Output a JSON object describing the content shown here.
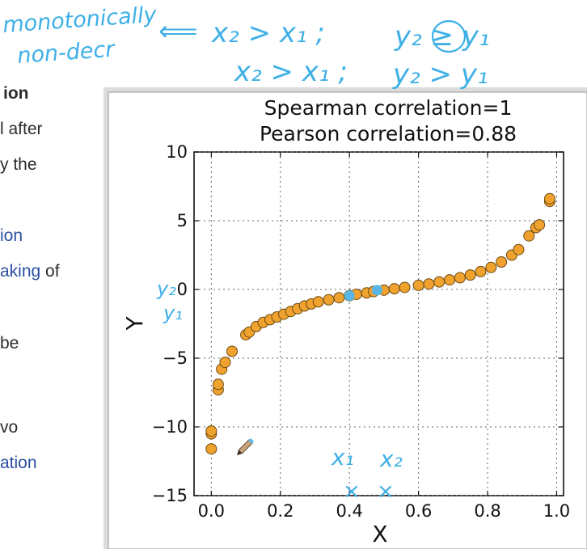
{
  "document": {
    "lines": [
      {
        "text": "ion",
        "style": "bold"
      },
      {
        "text": "l after",
        "style": "plain"
      },
      {
        "text": "y the",
        "style": "plain"
      },
      {
        "text": "ion",
        "style": "link"
      },
      {
        "text": "aking",
        "style": "link",
        "suffix": " of"
      },
      {
        "text": "be",
        "style": "plain"
      },
      {
        "text": "vo",
        "style": "plain"
      },
      {
        "text": "ation",
        "style": "link"
      }
    ]
  },
  "annotations": {
    "line1_left": "monotonically",
    "line2_left": "non-decr",
    "arrow": "⟸",
    "eq1": "x₂ > x₁ ;",
    "eq2": "y₂ ≥ y₁",
    "eq3": "x₂ > x₁ ;",
    "eq4": "y₂ > y₁",
    "y2": "y₂",
    "y1": "y₁",
    "x1": "x₁",
    "x2": "x₂",
    "marker_x": "×",
    "ink_color": "#3fb0e6"
  },
  "chart_data": {
    "type": "scatter",
    "title": "Spearman correlation=1",
    "subtitle": "Pearson correlation=0.88",
    "xlabel": "X",
    "ylabel": "Y",
    "xlim": [
      -0.05,
      1.02
    ],
    "ylim": [
      -15,
      10
    ],
    "xticks": [
      0.0,
      0.2,
      0.4,
      0.6,
      0.8,
      1.0
    ],
    "xtick_labels": [
      "0.0",
      "0.2",
      "0.4",
      "0.6",
      "0.8",
      "1.0"
    ],
    "yticks": [
      -15,
      -10,
      -5,
      0,
      5,
      10
    ],
    "ytick_labels": [
      "−15",
      "−10",
      "−5",
      "0",
      "5",
      "10"
    ],
    "grid": true,
    "point_color": "#f0a22e",
    "point_edge": "#6b4a12",
    "highlight_color": "#58b7e4",
    "points": [
      {
        "x": 0.0,
        "y": -11.6
      },
      {
        "x": 0.0,
        "y": -10.5
      },
      {
        "x": 0.0,
        "y": -10.3
      },
      {
        "x": 0.02,
        "y": -7.3
      },
      {
        "x": 0.02,
        "y": -6.9
      },
      {
        "x": 0.03,
        "y": -5.8
      },
      {
        "x": 0.04,
        "y": -5.3
      },
      {
        "x": 0.06,
        "y": -4.5
      },
      {
        "x": 0.1,
        "y": -3.3
      },
      {
        "x": 0.11,
        "y": -3.1
      },
      {
        "x": 0.13,
        "y": -2.7
      },
      {
        "x": 0.15,
        "y": -2.4
      },
      {
        "x": 0.17,
        "y": -2.2
      },
      {
        "x": 0.19,
        "y": -2.0
      },
      {
        "x": 0.21,
        "y": -1.8
      },
      {
        "x": 0.23,
        "y": -1.6
      },
      {
        "x": 0.25,
        "y": -1.4
      },
      {
        "x": 0.27,
        "y": -1.2
      },
      {
        "x": 0.29,
        "y": -1.05
      },
      {
        "x": 0.31,
        "y": -0.9
      },
      {
        "x": 0.34,
        "y": -0.75
      },
      {
        "x": 0.37,
        "y": -0.6
      },
      {
        "x": 0.4,
        "y": -0.45
      },
      {
        "x": 0.42,
        "y": -0.35
      },
      {
        "x": 0.45,
        "y": -0.25
      },
      {
        "x": 0.47,
        "y": -0.15
      },
      {
        "x": 0.5,
        "y": -0.05
      },
      {
        "x": 0.53,
        "y": 0.05
      },
      {
        "x": 0.56,
        "y": 0.15
      },
      {
        "x": 0.6,
        "y": 0.3
      },
      {
        "x": 0.63,
        "y": 0.4
      },
      {
        "x": 0.66,
        "y": 0.55
      },
      {
        "x": 0.69,
        "y": 0.7
      },
      {
        "x": 0.72,
        "y": 0.85
      },
      {
        "x": 0.75,
        "y": 1.05
      },
      {
        "x": 0.78,
        "y": 1.3
      },
      {
        "x": 0.81,
        "y": 1.6
      },
      {
        "x": 0.84,
        "y": 2.0
      },
      {
        "x": 0.87,
        "y": 2.5
      },
      {
        "x": 0.89,
        "y": 2.9
      },
      {
        "x": 0.92,
        "y": 3.9
      },
      {
        "x": 0.94,
        "y": 4.5
      },
      {
        "x": 0.95,
        "y": 4.7
      },
      {
        "x": 0.98,
        "y": 6.4
      },
      {
        "x": 0.98,
        "y": 6.6
      }
    ],
    "highlighted_points": [
      {
        "x": 0.4,
        "y": -0.45
      },
      {
        "x": 0.48,
        "y": -0.05
      }
    ]
  }
}
